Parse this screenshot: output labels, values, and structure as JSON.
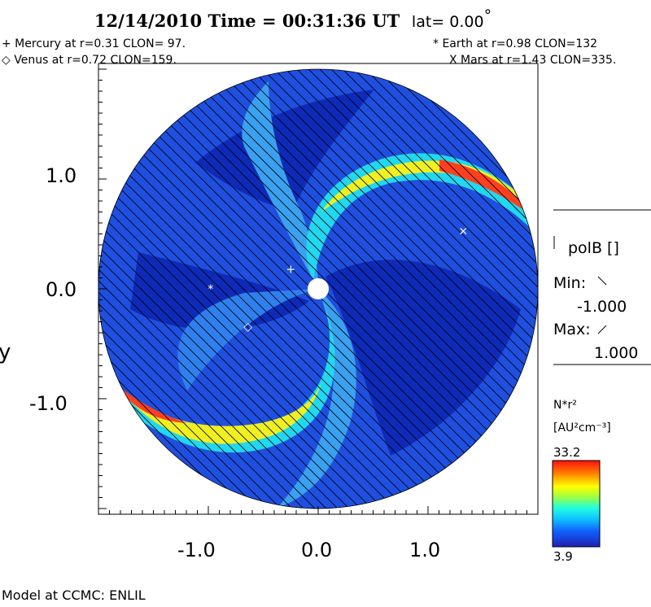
{
  "header": {
    "title": "12/14/2010 Time = 00:31:36 UT",
    "lat": "lat= 0.00",
    "lat_deg": "°"
  },
  "planets": {
    "mercury": "+ Mercury at r=0.31 CLON= 97.",
    "venus": "◇ Venus at r=0.72 CLON=159.",
    "earth": "* Earth at r=0.98 CLON=132",
    "mars": "X Mars at r=1.43 CLON=335."
  },
  "chart_data": {
    "type": "heatmap",
    "ylabel": "y",
    "x_ticks": [
      "-1.0",
      "0.0",
      "1.0"
    ],
    "y_ticks": [
      "1.0",
      "0.0",
      "-1.0"
    ],
    "xlim": [
      -2.0,
      2.0
    ],
    "ylim": [
      -2.0,
      2.0
    ],
    "markers": [
      {
        "body": "Mercury",
        "symbol": "+",
        "x": -0.25,
        "y": 0.18
      },
      {
        "body": "Venus",
        "symbol": "◇",
        "x": -0.64,
        "y": -0.34
      },
      {
        "body": "Earth",
        "symbol": "*",
        "x": -0.98,
        "y": 0.0
      },
      {
        "body": "Mars",
        "symbol": "×",
        "x": 1.32,
        "y": 0.53
      }
    ],
    "colorbar": {
      "max": "33.2",
      "min": "3.9"
    }
  },
  "side_panel": {
    "field_name": "polB []",
    "min_label": "Min:",
    "min_value": "-1.000",
    "max_label": "Max:",
    "max_value": "1.000",
    "quantity": "N*r²",
    "units": "[AU²cm⁻³]"
  },
  "footer": "Model at CCMC: ENLIL"
}
